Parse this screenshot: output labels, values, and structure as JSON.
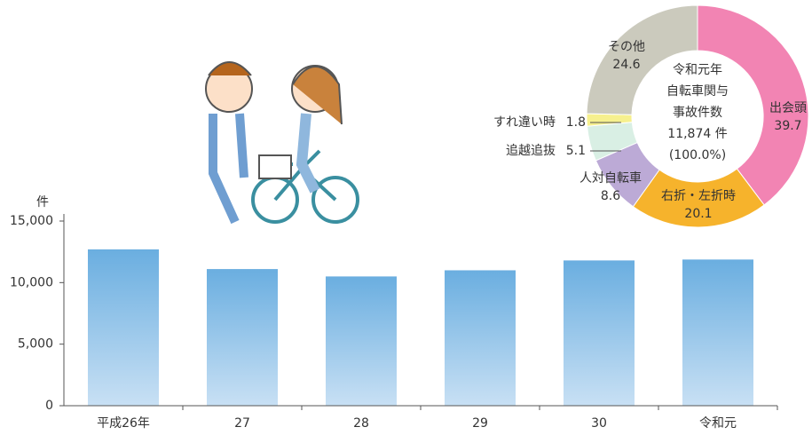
{
  "chart_data": [
    {
      "type": "bar",
      "y_unit": "件",
      "categories": [
        "平成26年",
        "27",
        "28",
        "29",
        "30",
        "令和元"
      ],
      "values": [
        12700,
        11100,
        10500,
        11000,
        11800,
        11874
      ],
      "color": [
        "#6aaee0",
        "#c8e0f4"
      ],
      "ylim": [
        0,
        15000
      ],
      "yticks": [
        0,
        {
          "value": 5000,
          "label": "5,000"
        },
        {
          "value": 10000,
          "label": "10,000"
        },
        {
          "value": 15000,
          "label": "15,000"
        }
      ]
    },
    {
      "type": "pie",
      "center_text": [
        "令和元年",
        "自転車関与",
        "事故件数",
        "11,874 件",
        "(100.0%)"
      ],
      "categories": [
        "出会頭",
        "右折・左折時",
        "人対自転車",
        "追越追抜",
        "すれ違い時",
        "その他"
      ],
      "values": [
        39.7,
        20.1,
        8.6,
        5.1,
        1.8,
        24.6
      ],
      "colors": [
        "#f284b3",
        "#f6b32c",
        "#bcaad6",
        "#d9efe4",
        "#f6f08e",
        "#cbcabd"
      ]
    }
  ]
}
